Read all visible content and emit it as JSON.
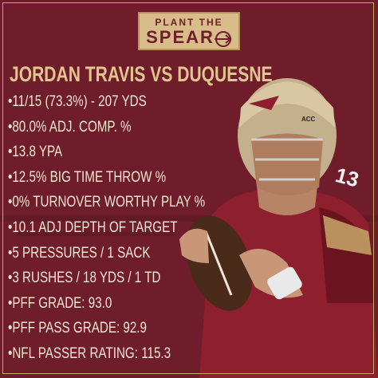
{
  "header": {
    "logo_top": "PLANT THE",
    "logo_bottom": "SPEAR"
  },
  "title": "JORDAN TRAVIS VS DUQUESNE",
  "stats": [
    "•11/15 (73.3%) - 207 YDS",
    "•80.0% ADJ. COMP. %",
    "•13.8 YPA",
    "•12.5% BIG TIME THROW %",
    "•0% TURNOVER WORTHY PLAY %",
    "•10.1 ADJ DEPTH OF TARGET",
    "•5 PRESSURES / 1 SACK",
    "•3 RUSHES / 18 YDS / 1 TD",
    "•PFF GRADE: 93.0",
    "•PFF PASS GRADE: 92.9",
    "•NFL PASSER RATING: 115.3"
  ],
  "photo": {
    "helmet_text": "ACC",
    "jersey_number": "13"
  }
}
